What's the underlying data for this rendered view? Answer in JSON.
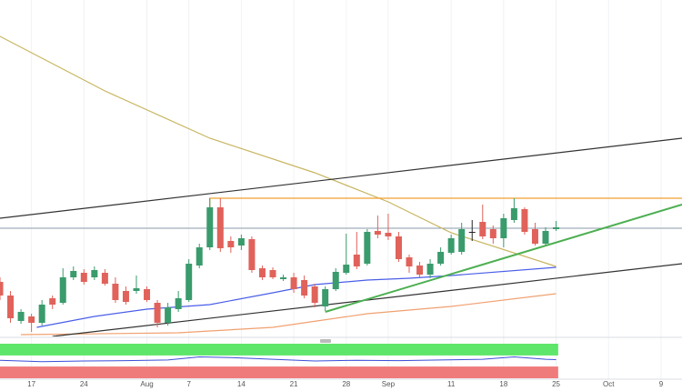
{
  "chart_data": {
    "type": "candlestick",
    "xlim": [
      0,
      65
    ],
    "ylim": [
      0,
      370
    ],
    "grid": true,
    "xticks": [
      {
        "value": 3,
        "label": "17"
      },
      {
        "value": 8,
        "label": "24"
      },
      {
        "value": 14,
        "label": "Aug"
      },
      {
        "value": 18,
        "label": "7"
      },
      {
        "value": 23,
        "label": "14"
      },
      {
        "value": 28,
        "label": "21"
      },
      {
        "value": 33,
        "label": "28"
      },
      {
        "value": 37,
        "label": "Sep"
      },
      {
        "value": 43,
        "label": "11"
      },
      {
        "value": 48,
        "label": "18"
      },
      {
        "value": 53,
        "label": "25"
      },
      {
        "value": 58,
        "label": "Oct"
      },
      {
        "value": 63,
        "label": "9"
      }
    ],
    "up_color": "#3a9b6c",
    "down_color": "#e0625a",
    "flat_color": "#222222",
    "candles": {
      "open": [
        60,
        45,
        17,
        22,
        15,
        42,
        37,
        65,
        70,
        65,
        70,
        58,
        50,
        50,
        52,
        37,
        15,
        30,
        40,
        78,
        98,
        142,
        105,
        100,
        107,
        75,
        73,
        63,
        65,
        62,
        55,
        33,
        52,
        70,
        90,
        80,
        116,
        114,
        110,
        87,
        78,
        68,
        80,
        92,
        93,
        115,
        126,
        118,
        108,
        128,
        140,
        118,
        102,
        118
      ],
      "high": [
        65,
        50,
        30,
        25,
        40,
        45,
        75,
        77,
        74,
        77,
        74,
        65,
        55,
        67,
        55,
        40,
        37,
        50,
        85,
        102,
        152,
        152,
        110,
        112,
        110,
        78,
        76,
        68,
        70,
        67,
        58,
        55,
        75,
        113,
        115,
        118,
        133,
        135,
        115,
        90,
        82,
        85,
        98,
        112,
        125,
        128,
        145,
        122,
        135,
        152,
        142,
        125,
        120,
        127
      ],
      "low": [
        40,
        15,
        14,
        5,
        12,
        30,
        35,
        62,
        57,
        62,
        56,
        37,
        35,
        47,
        38,
        10,
        12,
        27,
        38,
        75,
        95,
        93,
        92,
        95,
        70,
        62,
        63,
        61,
        48,
        42,
        32,
        28,
        50,
        68,
        74,
        78,
        108,
        106,
        82,
        70,
        65,
        64,
        78,
        90,
        90,
        105,
        107,
        102,
        98,
        125,
        112,
        100,
        100,
        116
      ],
      "close": [
        45,
        20,
        27,
        15,
        35,
        35,
        65,
        72,
        60,
        73,
        58,
        40,
        38,
        53,
        40,
        15,
        32,
        42,
        80,
        98,
        142,
        97,
        98,
        108,
        73,
        65,
        65,
        65,
        52,
        45,
        37,
        52,
        71,
        79,
        77,
        115,
        112,
        110,
        85,
        77,
        68,
        80,
        93,
        108,
        118,
        115,
        110,
        108,
        130,
        141,
        115,
        102,
        116,
        120
      ]
    },
    "lines": [
      {
        "color": "#c8b560",
        "x": [
          0,
          10,
          20,
          30,
          37,
          43,
          53
        ],
        "y": [
          330,
          270,
          218,
          180,
          148,
          114,
          77
        ]
      },
      {
        "color": "#4a5ee8",
        "x": [
          3.5,
          9,
          14,
          20,
          26,
          30,
          35,
          39,
          43,
          53
        ],
        "y": [
          10,
          22,
          30,
          35,
          48,
          57,
          62,
          64,
          67,
          76
        ]
      },
      {
        "color": "#f0a070",
        "x": [
          2,
          17,
          26,
          35,
          43,
          53
        ],
        "y": [
          2,
          4,
          10,
          25,
          33,
          47
        ]
      },
      {
        "color": "#333333",
        "x": [
          0,
          65
        ],
        "y": [
          130,
          218
        ]
      },
      {
        "color": "#333333",
        "x": [
          5,
          65
        ],
        "y": [
          0,
          80
        ]
      },
      {
        "color": "#4caf50",
        "x": [
          31,
          65
        ],
        "y": [
          27,
          145
        ]
      },
      {
        "color": "#f0a030",
        "x": [
          20,
          20,
          65
        ],
        "y": [
          142,
          152,
          152
        ]
      }
    ],
    "price_line": {
      "value": 119,
      "color": "#8a9aa8"
    },
    "indicator": {
      "ylim": [
        0,
        100
      ],
      "upper_band": [
        66,
        100
      ],
      "lower_band": [
        0,
        34
      ],
      "upper_color": "#5ee66a",
      "lower_color": "#f07b7b",
      "color": "#3b4fd8",
      "x": [
        0,
        4,
        8,
        12,
        16,
        19,
        22,
        26,
        30,
        34,
        38,
        42,
        46,
        49,
        52,
        53
      ],
      "y": [
        52,
        48,
        50,
        51,
        53,
        62,
        60,
        55,
        50,
        52,
        51,
        53,
        55,
        62,
        55,
        54
      ]
    }
  }
}
